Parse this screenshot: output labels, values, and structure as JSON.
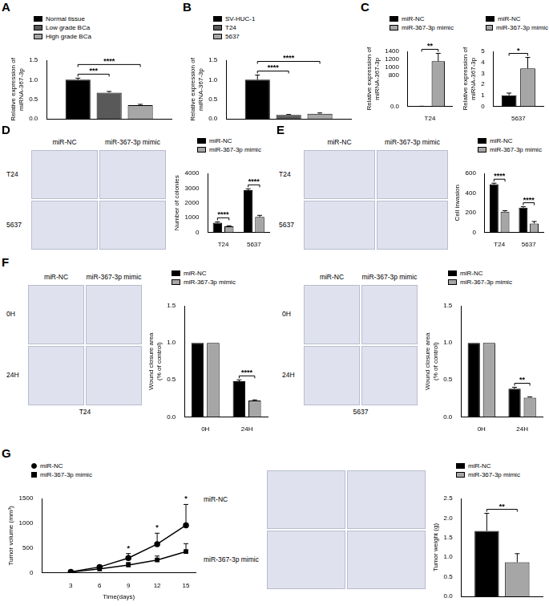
{
  "chart_data": [
    {
      "type": "bar",
      "title": "A",
      "categories": [
        null
      ],
      "series": [
        {
          "name": "Normal tissue",
          "color": "#000000",
          "values": [
            1.0
          ],
          "error": [
            0.04
          ]
        },
        {
          "name": "Low grade BCa",
          "color": "#595959",
          "values": [
            0.67
          ],
          "error": [
            0.03
          ]
        },
        {
          "name": "High grade BCa",
          "color": "#a6a6a6",
          "values": [
            0.35
          ],
          "error": [
            0.02
          ]
        }
      ],
      "y_label": [
        "Relative expression of",
        "miRNA-367-3p"
      ],
      "ylim": [
        0,
        1.5
      ],
      "yticks": [
        {
          "value": 0,
          "label": "0.0"
        },
        0.5,
        {
          "value": 1,
          "label": "1.0"
        },
        1.5
      ],
      "tick_labels": "y",
      "legend": "upper left",
      "grid": false,
      "significance": [
        {
          "from": "Normal tissue",
          "to": "Low grade BCa",
          "label": "***"
        },
        {
          "from": "Normal tissue",
          "to": "High grade BCa",
          "label": "****"
        }
      ]
    },
    {
      "type": "bar",
      "title": "B",
      "categories": [
        null
      ],
      "series": [
        {
          "name": "SV-HUC-1",
          "color": "#000000",
          "values": [
            1.0
          ],
          "error": [
            0.12
          ]
        },
        {
          "name": "T24",
          "color": "#595959",
          "values": [
            0.1
          ],
          "error": [
            0.01
          ]
        },
        {
          "name": "5637",
          "color": "#a6a6a6",
          "values": [
            0.13
          ],
          "error": [
            0.02
          ]
        }
      ],
      "y_label": [
        "Relative expression of",
        "miRNA-367-3p"
      ],
      "ylim": [
        0,
        1.5
      ],
      "yticks": [
        {
          "value": 0,
          "label": "0.0"
        },
        0.5,
        {
          "value": 1,
          "label": "1.0"
        },
        1.5
      ],
      "tick_labels": "y",
      "legend": "upper left",
      "grid": false,
      "significance": [
        {
          "from": "SV-HUC-1",
          "to": "T24",
          "label": "****"
        },
        {
          "from": "SV-HUC-1",
          "to": "5637",
          "label": "****"
        }
      ]
    },
    {
      "type": "bar",
      "title": "C",
      "categories": [
        "T24"
      ],
      "series": [
        {
          "name": "miR-NC",
          "color": "#000000",
          "values": [
            1.0
          ],
          "error": [
            0.2
          ]
        },
        {
          "name": "miR-367-3p mimic",
          "color": "#a6a6a6",
          "values": [
            1150
          ],
          "error": [
            200
          ]
        }
      ],
      "y_label": [
        "Relative expression of",
        "miRNA-367-3p"
      ],
      "ylim": [
        0,
        1400
      ],
      "yticks": [
        {
          "value": 0,
          "label": "0.0"
        },
        800,
        1000,
        1200,
        1400
      ],
      "legend": "upper left",
      "grid": false,
      "significance": [
        {
          "category": "T24",
          "from": "miR-NC",
          "to": "miR-367-3p mimic",
          "label": "**"
        }
      ]
    },
    {
      "type": "bar",
      "categories": [
        "5637"
      ],
      "series": [
        {
          "name": "miR-NC",
          "color": "#000000",
          "values": [
            1.0
          ],
          "error": [
            0.2
          ]
        },
        {
          "name": "miR-367-3p mimic",
          "color": "#a6a6a6",
          "values": [
            3.45
          ],
          "error": [
            1.0
          ]
        }
      ],
      "y_label": [
        "Relative expression of",
        "miRNA-367-3p"
      ],
      "ylim": [
        0,
        5
      ],
      "yticks": [
        0,
        1,
        2,
        3,
        4,
        5
      ],
      "legend": "upper left",
      "grid": false,
      "significance": [
        {
          "category": "5637",
          "from": "miR-NC",
          "to": "miR-367-3p mimic",
          "label": "*"
        }
      ]
    },
    {
      "type": "bar",
      "title": "D",
      "categories": [
        "T24",
        "5637"
      ],
      "series": [
        {
          "name": "miR-NC",
          "color": "#000000",
          "values": [
            650,
            2850
          ],
          "error": [
            60,
            100
          ]
        },
        {
          "name": "miR-367-3p mimic",
          "color": "#a6a6a6",
          "values": [
            400,
            1050
          ],
          "error": [
            40,
            100
          ]
        }
      ],
      "y_label": "Number of colonies",
      "ylim": [
        0,
        4000
      ],
      "yticks": [
        0,
        1000,
        2000,
        3000,
        4000
      ],
      "legend": "upper left",
      "grid": false,
      "significance": [
        {
          "category": "T24",
          "from": "miR-NC",
          "to": "miR-367-3p mimic",
          "label": "****"
        },
        {
          "category": "5637",
          "from": "miR-NC",
          "to": "miR-367-3p mimic",
          "label": "****"
        }
      ]
    },
    {
      "type": "bar",
      "title": "E",
      "categories": [
        "T24",
        "5637"
      ],
      "series": [
        {
          "name": "miR-NC",
          "color": "#000000",
          "values": [
            490,
            250
          ],
          "error": [
            10,
            10
          ]
        },
        {
          "name": "miR-367-3p mimic",
          "color": "#a6a6a6",
          "values": [
            210,
            90
          ],
          "error": [
            10,
            20
          ]
        }
      ],
      "y_label": "Cell invasion",
      "ylim": [
        0,
        600
      ],
      "yticks": [
        0,
        200,
        400,
        600
      ],
      "legend": "upper left",
      "grid": false,
      "significance": [
        {
          "category": "T24",
          "from": "miR-NC",
          "to": "miR-367-3p mimic",
          "label": "****"
        },
        {
          "category": "5637",
          "from": "miR-NC",
          "to": "miR-367-3p mimic",
          "label": "****"
        }
      ]
    },
    {
      "type": "bar",
      "title": "F",
      "categories": [
        "0H",
        "24H"
      ],
      "series": [
        {
          "name": "miR-NC",
          "color": "#000000",
          "values": [
            1.0,
            0.48
          ],
          "error": [
            0,
            0.02
          ]
        },
        {
          "name": "miR-367-3p mimic",
          "color": "#a6a6a6",
          "values": [
            1.0,
            0.22
          ],
          "error": [
            0,
            0.01
          ]
        }
      ],
      "y_label": [
        "Wound closure area",
        "(% of control)"
      ],
      "ylim": [
        0,
        1.5
      ],
      "yticks": [
        {
          "value": 0,
          "label": "0.0"
        },
        0.5,
        {
          "value": 1,
          "label": "1.0"
        },
        1.5
      ],
      "legend": "upper left",
      "grid": false,
      "significance": [
        {
          "category": "24H",
          "from": "miR-NC",
          "to": "miR-367-3p mimic",
          "label": "****"
        }
      ]
    },
    {
      "type": "bar",
      "categories": [
        "0H",
        "24H"
      ],
      "series": [
        {
          "name": "miR-NC",
          "color": "#000000",
          "values": [
            1.0,
            0.38
          ],
          "error": [
            0,
            0.02
          ]
        },
        {
          "name": "miR-367-3p mimic",
          "color": "#a6a6a6",
          "values": [
            1.0,
            0.26
          ],
          "error": [
            0,
            0.01
          ]
        }
      ],
      "y_label": [
        "Wound closure area",
        "(% of control)"
      ],
      "ylim": [
        0,
        1.5
      ],
      "yticks": [
        {
          "value": 0,
          "label": "0.0"
        },
        0.5,
        {
          "value": 1,
          "label": "1.0"
        },
        1.5
      ],
      "legend": "upper left",
      "grid": false,
      "significance": [
        {
          "category": "24H",
          "from": "miR-NC",
          "to": "miR-367-3p mimic",
          "label": "**"
        }
      ]
    },
    {
      "type": "line",
      "title": "G",
      "x": [
        3,
        6,
        9,
        12,
        15
      ],
      "series": [
        {
          "name": "miR-NC",
          "color": "#000000",
          "marker": "circle",
          "line_style": "solid",
          "values": [
            20,
            120,
            300,
            580,
            960
          ],
          "error": [
            10,
            30,
            90,
            220,
            420
          ]
        },
        {
          "name": "miR-367-3p mimic",
          "color": "#000000",
          "marker": "square",
          "line_style": "solid",
          "values": [
            15,
            80,
            160,
            260,
            430
          ],
          "error": [
            10,
            20,
            50,
            80,
            160
          ]
        }
      ],
      "x_label": "Time(days)",
      "y_label": "Tumor volume (mm³)",
      "xlim": [
        0,
        16
      ],
      "xticks": [
        3,
        6,
        9,
        12,
        15
      ],
      "ylim": [
        0,
        1500
      ],
      "yticks": [
        0,
        500,
        1000,
        1500
      ],
      "legend": "upper left",
      "grid": false,
      "significance": [
        {
          "x": 9,
          "label": "*"
        },
        {
          "x": 12,
          "label": "*"
        },
        {
          "x": 15,
          "label": "*"
        }
      ]
    },
    {
      "type": "bar",
      "categories": [
        null
      ],
      "series": [
        {
          "name": "miR-NC",
          "color": "#000000",
          "values": [
            1.67
          ],
          "error": [
            0.45
          ]
        },
        {
          "name": "miR-367-3p mimic",
          "color": "#a6a6a6",
          "values": [
            0.87
          ],
          "error": [
            0.22
          ]
        }
      ],
      "y_label": "Tumor weight (g)",
      "ylim": [
        0,
        2.5
      ],
      "yticks": [
        {
          "value": 0,
          "label": "0.0"
        },
        0.5,
        {
          "value": 1,
          "label": "1.0"
        },
        1.5,
        {
          "value": 2,
          "label": "2.0"
        },
        2.5
      ],
      "tick_labels": "y",
      "legend": "upper left",
      "grid": false,
      "significance": [
        {
          "from": "miR-NC",
          "to": "miR-367-3p mimic",
          "label": "**"
        }
      ]
    }
  ],
  "images": [
    {
      "columns": [
        "miR-NC",
        "miR-367-3p mimic"
      ],
      "rows": [
        "T24",
        "5637"
      ]
    },
    {
      "columns": [
        "miR-NC",
        "miR-367-3p mimic"
      ],
      "rows": [
        "T24",
        "5637"
      ]
    },
    {
      "columns": [
        "miR-NC",
        "miR-367-3p mimic"
      ],
      "rows": [
        "0H",
        "24H"
      ],
      "caption": "T24"
    },
    {
      "columns": [
        "miR-NC",
        "miR-367-3p mimic"
      ],
      "rows": [
        "0H",
        "24H"
      ],
      "caption": "5637"
    },
    {
      "rows": [
        "miR-NC",
        "miR-367-3p mimic"
      ]
    }
  ]
}
